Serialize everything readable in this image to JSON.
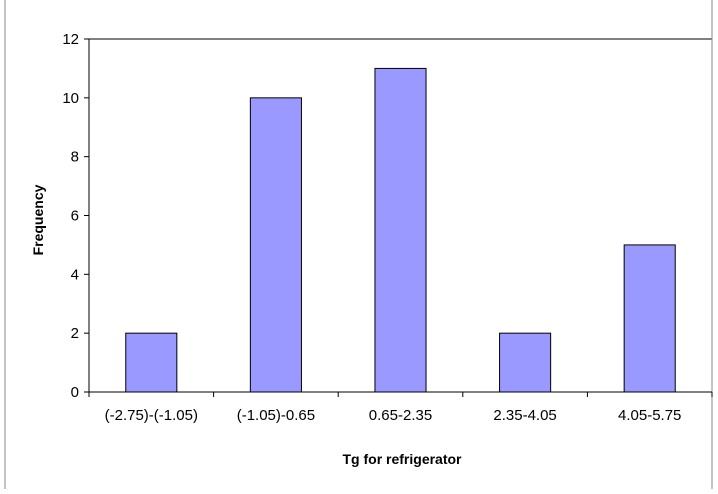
{
  "chart_data": {
    "type": "bar",
    "categories": [
      "(-2.75)-(-1.05)",
      "(-1.05)-0.65",
      "0.65-2.35",
      "2.35-4.05",
      "4.05-5.75"
    ],
    "values": [
      2,
      10,
      11,
      2,
      5
    ],
    "xlabel": "Tg for refrigerator",
    "ylabel": "Frequency",
    "ylim": [
      0,
      12
    ],
    "yticks": [
      0,
      2,
      4,
      6,
      8,
      10,
      12
    ],
    "grid": false,
    "legend": "none",
    "colors": {
      "bar_fill": "#9999ff",
      "bar_stroke": "#000000",
      "axis": "#000000",
      "background": "#ffffff",
      "frame": "#000000"
    }
  }
}
